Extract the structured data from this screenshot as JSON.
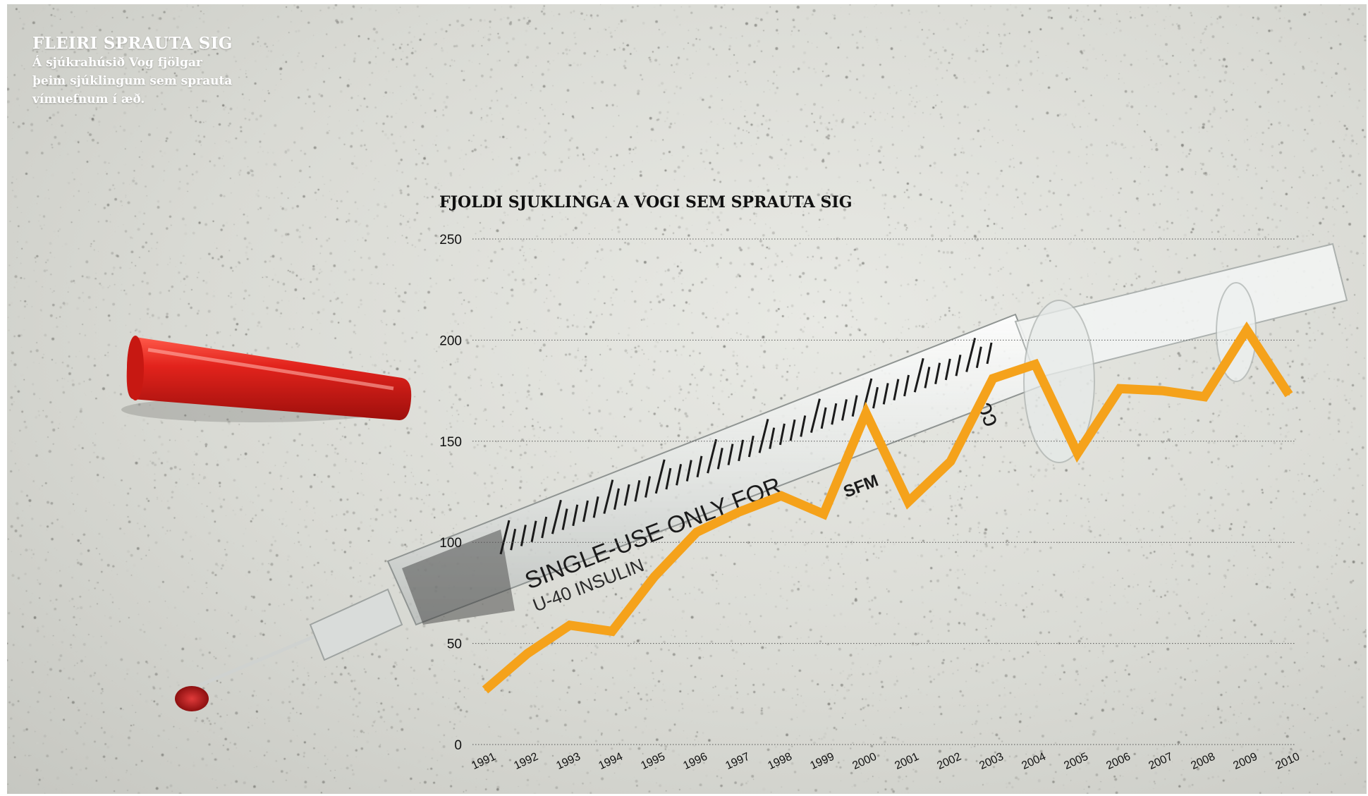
{
  "header": {
    "headline": "FLEIRI SPRAUTA SIG",
    "subline": "Á sjúkrahúsið Vog fjölgar þeim sjúklingum sem sprauta vímuefnum í æð."
  },
  "colors": {
    "line": "#f5a21b",
    "grid": "#555555",
    "syringe_cap": "#d11a17",
    "background": "#dcddd7"
  },
  "photo": {
    "syringe_text_1": "SINGLE-USE ONLY FOR",
    "syringe_text_2": "U-40 INSULIN",
    "syringe_brand": "SFM",
    "syringe_unit": "cc"
  },
  "chart_data": {
    "type": "line",
    "title": "FJOLDI SJUKLINGA A VOGI SEM SPRAUTA SIG",
    "xlabel": "",
    "ylabel": "",
    "ylim": [
      0,
      250
    ],
    "yticks": [
      0,
      50,
      100,
      150,
      200,
      250
    ],
    "grid": true,
    "x": [
      "1991",
      "1992",
      "1993",
      "1994",
      "1995",
      "1996",
      "1997",
      "1998",
      "1999",
      "2000",
      "2001",
      "2002",
      "2003",
      "2004",
      "2005",
      "2006",
      "2007",
      "2008",
      "2009",
      "2010"
    ],
    "series": [
      {
        "values": [
          27,
          45,
          59,
          56,
          83,
          105,
          115,
          123,
          114,
          164,
          120,
          140,
          181,
          188,
          144,
          176,
          175,
          172,
          205,
          173
        ]
      }
    ]
  }
}
